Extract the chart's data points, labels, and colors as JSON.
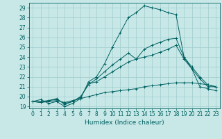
{
  "title": "",
  "xlabel": "Humidex (Indice chaleur)",
  "xlim": [
    -0.5,
    23.5
  ],
  "ylim": [
    18.8,
    29.5
  ],
  "xticks": [
    0,
    1,
    2,
    3,
    4,
    5,
    6,
    7,
    8,
    9,
    10,
    11,
    12,
    13,
    14,
    15,
    16,
    17,
    18,
    19,
    20,
    21,
    22,
    23
  ],
  "yticks": [
    19,
    20,
    21,
    22,
    23,
    24,
    25,
    26,
    27,
    28,
    29
  ],
  "bg_color": "#c8e8e8",
  "grid_color": "#a0cccc",
  "line_color": "#006060",
  "series": [
    [
      19.5,
      19.7,
      19.3,
      19.5,
      19.0,
      19.3,
      19.8,
      21.5,
      22.0,
      23.3,
      25.0,
      26.5,
      28.0,
      28.5,
      29.2,
      29.0,
      28.8,
      28.5,
      28.3,
      24.0,
      23.0,
      22.0,
      21.2,
      21.0
    ],
    [
      19.5,
      19.5,
      19.6,
      19.8,
      19.2,
      19.5,
      19.9,
      21.3,
      21.5,
      22.0,
      22.5,
      23.0,
      23.5,
      23.8,
      24.0,
      24.2,
      24.5,
      24.8,
      25.2,
      23.8,
      22.8,
      21.8,
      21.0,
      21.0
    ],
    [
      19.5,
      19.4,
      19.5,
      19.6,
      19.4,
      19.6,
      19.8,
      20.0,
      20.2,
      20.4,
      20.5,
      20.6,
      20.7,
      20.8,
      21.0,
      21.1,
      21.2,
      21.3,
      21.4,
      21.4,
      21.4,
      21.3,
      21.2,
      21.0
    ],
    [
      19.5,
      19.4,
      19.6,
      19.7,
      19.3,
      19.5,
      20.0,
      21.2,
      21.8,
      22.5,
      23.2,
      23.8,
      24.4,
      23.8,
      24.8,
      25.2,
      25.5,
      25.8,
      25.9,
      24.0,
      22.8,
      21.0,
      20.8,
      20.6
    ]
  ]
}
